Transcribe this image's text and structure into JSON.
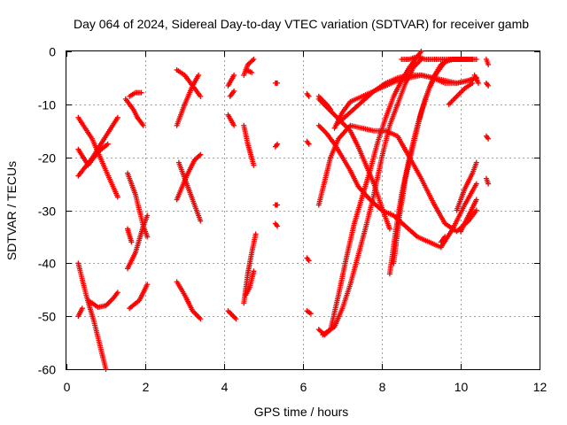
{
  "chart_data": {
    "type": "scatter",
    "title": "Day 064 of 2024, Sidereal Day-to-day VTEC variation (SDTVAR) for receiver gamb",
    "xlabel": "GPS time / hours",
    "ylabel": "SDTVAR / TECUs",
    "xlim": [
      0,
      12
    ],
    "ylim": [
      -60,
      0
    ],
    "xticks": [
      0,
      2,
      4,
      6,
      8,
      10,
      12
    ],
    "yticks": [
      0,
      -10,
      -20,
      -30,
      -40,
      -50,
      -60
    ],
    "grid": true,
    "marker": "+",
    "color": "#ff0000",
    "series": [
      {
        "x": [
          0.3,
          0.65,
          1.0,
          1.3
        ],
        "y": [
          -23.5,
          -20.2,
          -16.0,
          -12.5
        ]
      },
      {
        "x": [
          0.3,
          0.65,
          1.0,
          1.3
        ],
        "y": [
          -12.5,
          -16.5,
          -22.5,
          -27.5
        ]
      },
      {
        "x": [
          0.3,
          0.55,
          0.8,
          1.05
        ],
        "y": [
          -18.5,
          -21.5,
          -19.0,
          -17.5
        ]
      },
      {
        "x": [
          0.3,
          0.5,
          0.7,
          0.9,
          1.0
        ],
        "y": [
          -40.0,
          -46.0,
          -51.0,
          -57.0,
          -60.0
        ]
      },
      {
        "x": [
          0.3,
          0.4
        ],
        "y": [
          -50.0,
          -48.5
        ]
      },
      {
        "x": [
          0.55,
          0.8,
          1.0,
          1.2,
          1.3
        ],
        "y": [
          -47.0,
          -48.3,
          -48.0,
          -46.5,
          -45.5
        ]
      },
      {
        "x": [
          1.5,
          1.7,
          1.8,
          1.95
        ],
        "y": [
          -9.0,
          -11.0,
          -12.5,
          -14.0
        ]
      },
      {
        "x": [
          1.6,
          1.75,
          1.9
        ],
        "y": [
          -8.5,
          -7.8,
          -7.8
        ]
      },
      {
        "x": [
          1.55,
          1.75,
          1.95,
          2.05
        ],
        "y": [
          -23.0,
          -27.0,
          -33.0,
          -35.0
        ]
      },
      {
        "x": [
          1.55,
          1.75,
          1.95,
          2.05
        ],
        "y": [
          -41.0,
          -38.0,
          -33.0,
          -31.0
        ]
      },
      {
        "x": [
          1.55,
          1.65
        ],
        "y": [
          -33.5,
          -36.0
        ]
      },
      {
        "x": [
          1.6,
          1.85,
          2.05
        ],
        "y": [
          -48.5,
          -47.0,
          -44.0
        ]
      },
      {
        "x": [
          2.8,
          3.0,
          3.2,
          3.4
        ],
        "y": [
          -3.5,
          -4.5,
          -6.5,
          -8.5
        ]
      },
      {
        "x": [
          2.8,
          3.0,
          3.2,
          3.35
        ],
        "y": [
          -14.0,
          -10.0,
          -6.5,
          -4.5
        ]
      },
      {
        "x": [
          2.8,
          3.05,
          3.25,
          3.4
        ],
        "y": [
          -28.0,
          -23.5,
          -20.5,
          -19.5
        ]
      },
      {
        "x": [
          2.85,
          3.1,
          3.3,
          3.4
        ],
        "y": [
          -21.0,
          -26.0,
          -30.0,
          -32.0
        ]
      },
      {
        "x": [
          2.8,
          3.0,
          3.2,
          3.4
        ],
        "y": [
          -43.5,
          -46.0,
          -49.0,
          -50.5
        ]
      },
      {
        "x": [
          4.1,
          4.25
        ],
        "y": [
          -6.5,
          -4.5
        ]
      },
      {
        "x": [
          4.1,
          4.25
        ],
        "y": [
          -12.0,
          -14.0
        ]
      },
      {
        "x": [
          4.1,
          4.3
        ],
        "y": [
          -49.0,
          -50.5
        ]
      },
      {
        "x": [
          4.15,
          4.25
        ],
        "y": [
          -8.5,
          -7.5
        ]
      },
      {
        "x": [
          4.5,
          4.6,
          4.75
        ],
        "y": [
          -4.5,
          -2.5,
          -1.5
        ]
      },
      {
        "x": [
          4.55,
          4.7
        ],
        "y": [
          -3.5,
          -4.0
        ]
      },
      {
        "x": [
          4.5,
          4.6,
          4.75
        ],
        "y": [
          -14.0,
          -17.5,
          -21.5
        ]
      },
      {
        "x": [
          4.5,
          4.6,
          4.7,
          4.8
        ],
        "y": [
          -47.5,
          -42.0,
          -38.0,
          -34.5
        ]
      },
      {
        "x": [
          4.55,
          4.65,
          4.75
        ],
        "y": [
          -46.0,
          -44.5,
          -41.5
        ]
      },
      {
        "x": [
          5.3,
          5.35
        ],
        "y": [
          -6.0,
          -6.0
        ]
      },
      {
        "x": [
          5.3,
          5.35
        ],
        "y": [
          -18.0,
          -17.5
        ]
      },
      {
        "x": [
          5.3,
          5.35
        ],
        "y": [
          -29.0,
          -29.0
        ]
      },
      {
        "x": [
          5.3,
          5.35
        ],
        "y": [
          -32.5,
          -33.0
        ]
      },
      {
        "x": [
          6.1,
          6.15
        ],
        "y": [
          -8.0,
          -8.5
        ]
      },
      {
        "x": [
          6.1,
          6.15
        ],
        "y": [
          -17.0,
          -17.5
        ]
      },
      {
        "x": [
          6.1,
          6.15
        ],
        "y": [
          -39.0,
          -39.5
        ]
      },
      {
        "x": [
          6.1,
          6.2
        ],
        "y": [
          -49.0,
          -49.5
        ]
      },
      {
        "x": [
          6.4,
          6.6,
          6.7
        ],
        "y": [
          -8.5,
          -10.0,
          -11.0
        ]
      },
      {
        "x": [
          6.4,
          6.6,
          6.8,
          7.0,
          7.2,
          7.4,
          7.6,
          7.8,
          8.0,
          8.2
        ],
        "y": [
          -9.0,
          -10.5,
          -12.0,
          -13.5,
          -15.0,
          -18.0,
          -21.5,
          -25.0,
          -29.5,
          -33.5
        ]
      },
      {
        "x": [
          6.4,
          6.6,
          6.8,
          7.0,
          7.2,
          7.4,
          7.7,
          8.0,
          8.3,
          8.6,
          8.9,
          9.2,
          9.5,
          9.8,
          10.1,
          10.4
        ],
        "y": [
          -14.0,
          -15.5,
          -17.5,
          -20.0,
          -22.5,
          -25.5,
          -28.0,
          -30.0,
          -31.0,
          -33.0,
          -35.0,
          -36.0,
          -37.0,
          -33.5,
          -29.0,
          -25.0
        ]
      },
      {
        "x": [
          6.4,
          6.55,
          6.7,
          6.9,
          7.2,
          7.5,
          7.8,
          8.1,
          8.4,
          8.7,
          9.0,
          9.3,
          9.6,
          9.9,
          10.2,
          10.4
        ],
        "y": [
          -29.0,
          -24.5,
          -20.0,
          -16.5,
          -14.0,
          -14.5,
          -15.0,
          -15.0,
          -16.0,
          -20.0,
          -24.0,
          -28.5,
          -32.5,
          -34.0,
          -32.0,
          -30.0
        ]
      },
      {
        "x": [
          6.8,
          7.0,
          7.2,
          7.5,
          7.8,
          8.1,
          8.4,
          8.7,
          9.0,
          9.3,
          9.6,
          9.9,
          10.2,
          10.4
        ],
        "y": [
          -14.5,
          -11.5,
          -9.5,
          -8.5,
          -7.5,
          -6.5,
          -5.5,
          -5.0,
          -4.5,
          -5.0,
          -5.5,
          -6.0,
          -5.5,
          -5.0
        ]
      },
      {
        "x": [
          6.9,
          7.2,
          7.5,
          7.8,
          8.1,
          8.4,
          8.7,
          9.0,
          9.3,
          9.6,
          9.9,
          10.2,
          10.4
        ],
        "y": [
          -13.5,
          -11.5,
          -9.5,
          -7.5,
          -6.0,
          -5.0,
          -4.5,
          -4.5,
          -5.0,
          -6.0,
          -6.0,
          -5.5,
          -5.0
        ]
      },
      {
        "x": [
          6.5,
          6.6,
          6.8,
          7.0,
          7.2,
          7.4,
          7.6,
          7.8,
          8.0,
          8.2,
          8.4,
          8.6,
          8.8,
          9.0
        ],
        "y": [
          -53.5,
          -53.0,
          -52.0,
          -48.5,
          -44.0,
          -38.5,
          -33.0,
          -27.0,
          -20.0,
          -14.0,
          -10.0,
          -6.0,
          -3.0,
          -1.5
        ]
      },
      {
        "x": [
          6.4,
          6.55,
          6.7,
          6.9,
          7.1,
          7.3,
          7.5,
          7.7,
          7.9,
          8.1,
          8.3,
          8.5,
          8.7,
          8.9,
          9.0
        ],
        "y": [
          -52.5,
          -53.5,
          -52.5,
          -46.0,
          -39.0,
          -32.5,
          -27.5,
          -22.5,
          -17.0,
          -12.5,
          -8.5,
          -5.5,
          -3.0,
          -1.0,
          0.0
        ]
      },
      {
        "x": [
          8.2,
          8.35,
          8.5,
          8.7,
          8.9,
          9.1,
          9.3,
          9.5,
          9.7,
          10.0,
          10.3
        ],
        "y": [
          -42.0,
          -34.0,
          -27.0,
          -20.0,
          -14.0,
          -9.0,
          -5.0,
          -2.5,
          -1.5,
          -1.5,
          -1.5
        ]
      },
      {
        "x": [
          8.3,
          8.45,
          8.6,
          8.8,
          9.0,
          9.2,
          9.4,
          9.6,
          9.8,
          10.1,
          10.4
        ],
        "y": [
          -40.0,
          -31.0,
          -24.0,
          -17.5,
          -11.5,
          -7.0,
          -4.0,
          -2.0,
          -1.5,
          -1.5,
          -1.5
        ]
      },
      {
        "x": [
          8.5,
          8.7,
          8.9,
          9.1,
          9.3,
          9.5,
          9.7,
          9.9,
          10.1,
          10.3
        ],
        "y": [
          -1.5,
          -1.5,
          -1.0,
          -1.5,
          -1.5,
          -1.5,
          -1.5,
          -1.5,
          -1.5,
          -1.5
        ]
      },
      {
        "x": [
          9.5,
          9.6
        ],
        "y": [
          -36.0,
          -35.0
        ]
      },
      {
        "x": [
          9.7,
          9.9,
          10.1,
          10.3
        ],
        "y": [
          -10.0,
          -8.5,
          -7.0,
          -6.0
        ]
      },
      {
        "x": [
          9.9,
          10.1,
          10.3,
          10.4
        ],
        "y": [
          -30.0,
          -26.0,
          -23.0,
          -21.0
        ]
      },
      {
        "x": [
          10.0,
          10.2,
          10.4
        ],
        "y": [
          -34.0,
          -31.0,
          -28.0
        ]
      },
      {
        "x": [
          10.35,
          10.45
        ],
        "y": [
          -4.5,
          -6.0
        ]
      },
      {
        "x": [
          10.65,
          10.7
        ],
        "y": [
          -1.5,
          -2.5
        ]
      },
      {
        "x": [
          10.65,
          10.7
        ],
        "y": [
          -6.0,
          -6.5
        ]
      },
      {
        "x": [
          10.65,
          10.7
        ],
        "y": [
          -16.0,
          -16.5
        ]
      },
      {
        "x": [
          10.65,
          10.7
        ],
        "y": [
          -24.0,
          -25.0
        ]
      }
    ]
  }
}
